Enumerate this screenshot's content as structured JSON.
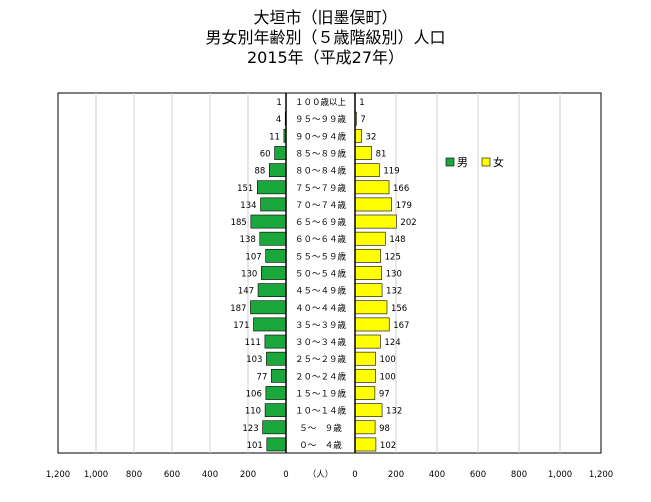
{
  "titles": {
    "line1": "大垣市（旧墨俣町）",
    "line2": "男女別年齢別（５歳階級別）人口",
    "line3": "2015年（平成27年）"
  },
  "chart_data": {
    "type": "bar",
    "orientation": "horizontal-pyramid",
    "categories": [
      "0〜 4歳",
      "5〜 9歳",
      "10〜14歳",
      "15〜19歳",
      "20〜24歳",
      "25〜29歳",
      "30〜34歳",
      "35〜39歳",
      "40〜44歳",
      "45〜49歳",
      "50〜54歳",
      "55〜59歳",
      "60〜64歳",
      "65〜69歳",
      "70〜74歳",
      "75〜79歳",
      "80〜84歳",
      "85〜89歳",
      "90〜94歳",
      "95〜99歳",
      "100歳以上"
    ],
    "category_labels": [
      "０～　４歳",
      "５～　９歳",
      "１０～１４歳",
      "１５～１９歳",
      "２０～２４歳",
      "２５～２９歳",
      "３０～３４歳",
      "３５～３９歳",
      "４０～４４歳",
      "４５～４９歳",
      "５０～５４歳",
      "５５～５９歳",
      "６０～６４歳",
      "６５～６９歳",
      "７０～７４歳",
      "７５～７９歳",
      "８０～８４歳",
      "８５～８９歳",
      "９０～９４歳",
      "９５～９９歳",
      "１００歳以上"
    ],
    "series": [
      {
        "name": "男",
        "color": "#1aa83c",
        "values": [
          101,
          123,
          110,
          106,
          77,
          103,
          111,
          171,
          187,
          147,
          130,
          107,
          138,
          185,
          134,
          151,
          88,
          60,
          11,
          4,
          1
        ]
      },
      {
        "name": "女",
        "color": "#ffff00",
        "values": [
          102,
          98,
          132,
          97,
          100,
          100,
          124,
          167,
          156,
          132,
          130,
          125,
          148,
          202,
          179,
          166,
          119,
          81,
          32,
          7,
          1
        ]
      }
    ],
    "xlim": [
      -1200,
      1200
    ],
    "x_ticks_left": [
      "1,200",
      "1,000",
      "800",
      "600",
      "400",
      "200",
      "0"
    ],
    "x_ticks_right": [
      "0",
      "200",
      "400",
      "600",
      "800",
      "1,000",
      "1,200"
    ],
    "x_unit_label": "（人）",
    "legend": "top-right",
    "grid": true
  }
}
